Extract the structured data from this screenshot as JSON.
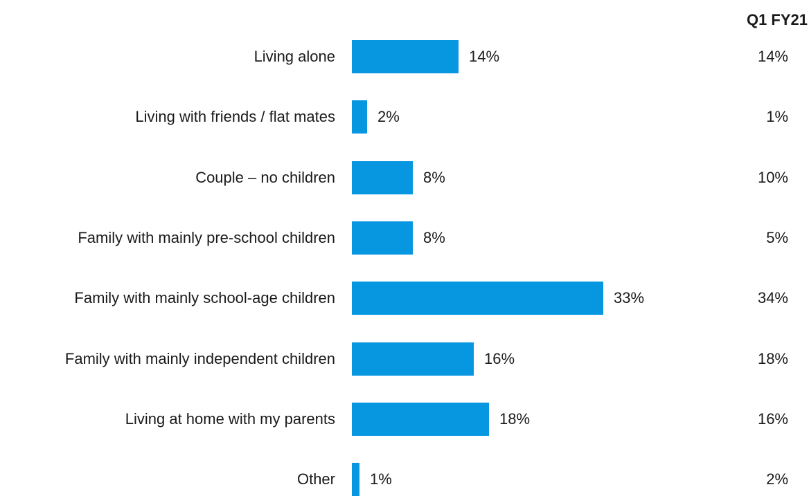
{
  "chart_data": {
    "type": "bar",
    "orientation": "horizontal",
    "categories": [
      "Living alone",
      "Living with friends / flat mates",
      "Couple – no children",
      "Family with mainly pre-school children",
      "Family with mainly school-age children",
      "Family with mainly independent children",
      "Living at home with my parents",
      "Other"
    ],
    "values": [
      14,
      2,
      8,
      8,
      33,
      16,
      18,
      1
    ],
    "value_labels": [
      "14%",
      "2%",
      "8%",
      "8%",
      "33%",
      "16%",
      "18%",
      "1%"
    ],
    "comparison": {
      "header": "Q1 FY21",
      "values": [
        14,
        1,
        10,
        5,
        34,
        18,
        16,
        2
      ],
      "labels": [
        "14%",
        "1%",
        "10%",
        "5%",
        "34%",
        "18%",
        "16%",
        "2%"
      ]
    },
    "xlim": [
      0,
      33
    ],
    "grid": false,
    "bar_color": "#0796e0"
  }
}
